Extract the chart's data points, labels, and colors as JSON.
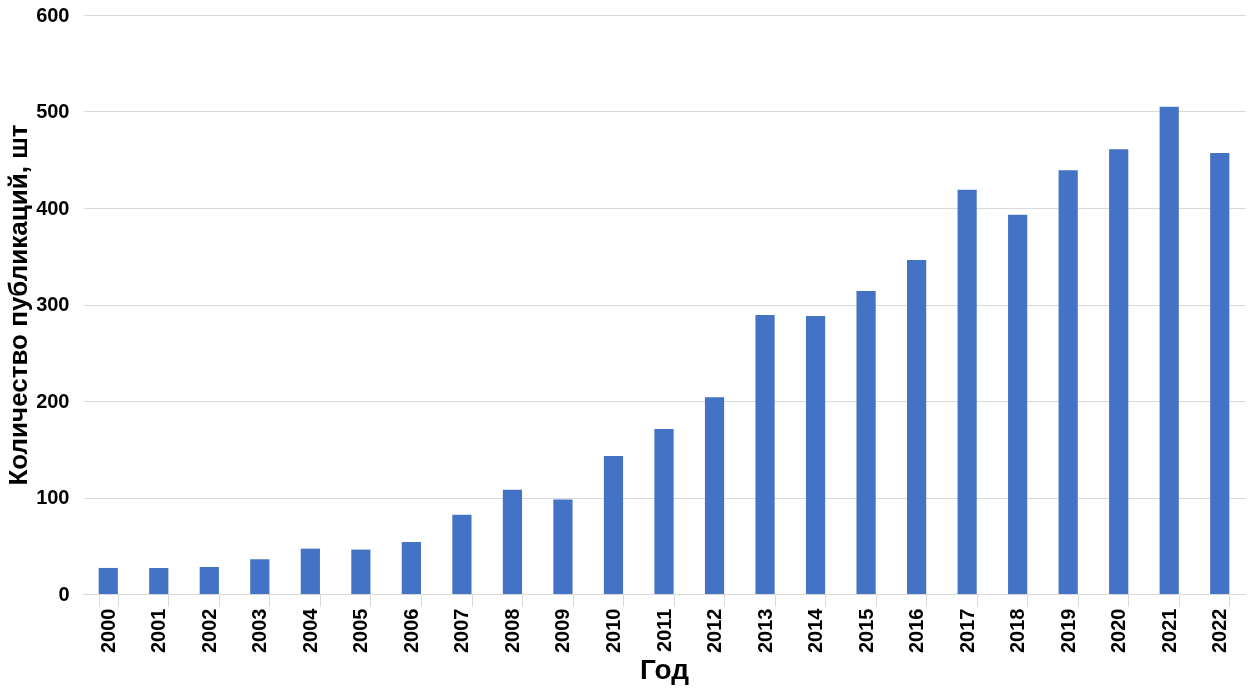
{
  "chart_data": {
    "type": "bar",
    "xlabel": "Год",
    "ylabel": "Количество публикаций, шт",
    "categories": [
      "2000",
      "2001",
      "2002",
      "2003",
      "2004",
      "2005",
      "2006",
      "2007",
      "2008",
      "2009",
      "2010",
      "2011",
      "2012",
      "2013",
      "2014",
      "2015",
      "2016",
      "2017",
      "2018",
      "2019",
      "2020",
      "2021",
      "2022"
    ],
    "values": [
      27,
      27,
      28,
      36,
      47,
      46,
      54,
      82,
      108,
      98,
      143,
      171,
      204,
      289,
      288,
      314,
      346,
      419,
      393,
      439,
      461,
      505,
      457
    ],
    "color": "#4472c4",
    "ylim": [
      0,
      600
    ],
    "yticks": [
      0,
      100,
      200,
      300,
      400,
      500,
      600
    ],
    "grid": "y"
  }
}
